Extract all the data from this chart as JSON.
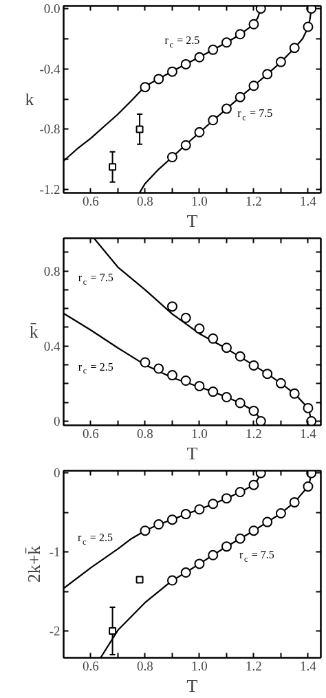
{
  "chart_data": [
    {
      "type": "line",
      "xlabel": "T",
      "ylabel": "k",
      "xlim": [
        0.5,
        1.447
      ],
      "ylim": [
        -1.222,
        0.018
      ],
      "xticks": [
        0.6,
        {
          "value": 0.7,
          "label": null
        },
        0.8,
        {
          "value": 0.9,
          "label": null
        },
        {
          "value": 1.0,
          "label": "1.0"
        },
        {
          "value": 1.1,
          "label": null
        },
        1.2,
        {
          "value": 1.3,
          "label": null
        },
        1.4
      ],
      "yticks": [
        {
          "value": 0,
          "label": "0.0"
        },
        {
          "value": -0.2,
          "label": null
        },
        -0.4,
        {
          "value": -0.6,
          "label": null
        },
        -0.8,
        {
          "value": -1.0,
          "label": null
        },
        -1.2
      ],
      "grid": false,
      "annotations": [
        "r$_{c}$ = 2.5",
        "r$_{c}$ = 7.5"
      ],
      "series": [
        {
          "color": "#000000",
          "line_style": "solid",
          "x": [
            0.5,
            0.55,
            0.6,
            0.65,
            0.7,
            0.75,
            0.8,
            0.85,
            0.9,
            0.95,
            1.0,
            1.05,
            1.1,
            1.15,
            1.2,
            1.215,
            1.226
          ],
          "values": [
            -1.01,
            -0.93,
            -0.86,
            -0.78,
            -0.7,
            -0.61,
            -0.515,
            -0.465,
            -0.416,
            -0.368,
            -0.322,
            -0.274,
            -0.225,
            -0.172,
            -0.104,
            -0.06,
            0.0
          ]
        },
        {
          "type": "scatter",
          "color": "#000000",
          "marker": "circle",
          "x": [
            0.8,
            0.85,
            0.9,
            0.95,
            1.0,
            1.05,
            1.1,
            1.15,
            1.2,
            1.226
          ],
          "values": [
            -0.521,
            -0.467,
            -0.418,
            -0.369,
            -0.323,
            -0.273,
            -0.225,
            -0.17,
            -0.104,
            0.0
          ]
        },
        {
          "color": "#000000",
          "line_style": "solid",
          "x": [
            0.78,
            0.8,
            0.85,
            0.9,
            0.95,
            1.0,
            1.05,
            1.1,
            1.15,
            1.2,
            1.25,
            1.3,
            1.35,
            1.38,
            1.4,
            1.407,
            1.412
          ],
          "values": [
            -1.22,
            -1.16,
            -1.065,
            -0.985,
            -0.902,
            -0.822,
            -0.742,
            -0.664,
            -0.587,
            -0.512,
            -0.435,
            -0.355,
            -0.262,
            -0.2,
            -0.125,
            -0.07,
            0.0
          ]
        },
        {
          "type": "scatter",
          "color": "#000000",
          "marker": "circle",
          "x": [
            0.9,
            0.95,
            1.0,
            1.05,
            1.1,
            1.15,
            1.2,
            1.25,
            1.3,
            1.35,
            1.4,
            1.412
          ],
          "values": [
            -0.985,
            -0.906,
            -0.82,
            -0.74,
            -0.664,
            -0.587,
            -0.512,
            -0.435,
            -0.354,
            -0.261,
            -0.121,
            0.0
          ]
        },
        {
          "type": "scatter",
          "color": "#000000",
          "marker": "square",
          "x": [
            0.68,
            0.78
          ],
          "values": [
            -1.05,
            -0.8
          ],
          "errors": [
            0.1,
            0.1
          ]
        }
      ]
    },
    {
      "type": "line",
      "xlabel": "T",
      "ylabel": "k̄",
      "xlim": [
        0.5,
        1.447
      ],
      "ylim": [
        -0.022,
        0.974
      ],
      "xticks": [
        0.6,
        {
          "value": 0.7,
          "label": null
        },
        0.8,
        {
          "value": 0.9,
          "label": null
        },
        {
          "value": 1.0,
          "label": "1.0"
        },
        {
          "value": 1.1,
          "label": null
        },
        1.2,
        {
          "value": 1.3,
          "label": null
        },
        1.4
      ],
      "yticks": [
        0,
        {
          "value": 0.1,
          "label": null
        },
        {
          "value": 0.2,
          "label": null
        },
        {
          "value": 0.3,
          "label": null
        },
        0.4,
        {
          "value": 0.5,
          "label": null
        },
        {
          "value": 0.6,
          "label": null
        },
        {
          "value": 0.7,
          "label": null
        },
        0.8,
        {
          "value": 0.9,
          "label": null
        }
      ],
      "grid": false,
      "annotations": [
        "r$_{c}$ = 7.5",
        "r$_{c}$ = 2.5"
      ],
      "series": [
        {
          "color": "#000000",
          "line_style": "solid",
          "x": [
            0.5,
            0.6,
            0.7,
            0.8,
            0.9,
            1.0,
            1.05,
            1.1,
            1.15,
            1.2,
            1.215,
            1.226
          ],
          "values": [
            0.574,
            0.485,
            0.39,
            0.3,
            0.232,
            0.182,
            0.157,
            0.128,
            0.097,
            0.055,
            0.03,
            0.0
          ]
        },
        {
          "type": "scatter",
          "color": "#000000",
          "marker": "circle",
          "x": [
            0.8,
            0.85,
            0.9,
            0.95,
            1.0,
            1.05,
            1.1,
            1.15,
            1.2,
            1.226
          ],
          "values": [
            0.313,
            0.28,
            0.245,
            0.216,
            0.187,
            0.157,
            0.128,
            0.097,
            0.055,
            0.0
          ]
        },
        {
          "color": "#000000",
          "line_style": "solid",
          "x": [
            0.612,
            0.7,
            0.8,
            0.9,
            1.0,
            1.1,
            1.2,
            1.25,
            1.3,
            1.35,
            1.4,
            1.407,
            1.412
          ],
          "values": [
            0.974,
            0.82,
            0.7,
            0.571,
            0.466,
            0.386,
            0.298,
            0.252,
            0.202,
            0.147,
            0.07,
            0.035,
            0.0
          ]
        },
        {
          "type": "scatter",
          "color": "#000000",
          "marker": "circle",
          "x": [
            0.9,
            0.95,
            1.0,
            1.05,
            1.1,
            1.15,
            1.2,
            1.25,
            1.3,
            1.35,
            1.4,
            1.412
          ],
          "values": [
            0.611,
            0.55,
            0.493,
            0.44,
            0.391,
            0.345,
            0.297,
            0.252,
            0.202,
            0.147,
            0.07,
            0.0
          ]
        }
      ]
    },
    {
      "type": "line",
      "xlabel": "T",
      "ylabel": "2k+k̄",
      "xlim": [
        0.5,
        1.447
      ],
      "ylim": [
        -2.34,
        0.03
      ],
      "xticks": [
        0.6,
        {
          "value": 0.7,
          "label": null
        },
        0.8,
        {
          "value": 0.9,
          "label": null
        },
        {
          "value": 1.0,
          "label": "1.0"
        },
        {
          "value": 1.1,
          "label": null
        },
        1.2,
        {
          "value": 1.3,
          "label": null
        },
        1.4
      ],
      "yticks": [
        0,
        {
          "value": -0.5,
          "label": null
        },
        -1,
        {
          "value": -1.5,
          "label": null
        },
        -2
      ],
      "grid": false,
      "annotations": [
        "r$_{c}$ = 2.5",
        "r$_{c}$ = 7.5"
      ],
      "series": [
        {
          "color": "#000000",
          "line_style": "solid",
          "x": [
            0.5,
            0.6,
            0.7,
            0.75,
            0.8,
            0.85,
            0.9,
            0.95,
            1.0,
            1.05,
            1.1,
            1.15,
            1.2,
            1.215,
            1.226
          ],
          "values": [
            -1.46,
            -1.2,
            -0.96,
            -0.83,
            -0.73,
            -0.65,
            -0.59,
            -0.52,
            -0.46,
            -0.39,
            -0.32,
            -0.24,
            -0.15,
            -0.08,
            0.0
          ]
        },
        {
          "type": "scatter",
          "color": "#000000",
          "marker": "circle",
          "x": [
            0.8,
            0.85,
            0.9,
            0.95,
            1.0,
            1.05,
            1.1,
            1.15,
            1.2,
            1.226
          ],
          "values": [
            -0.73,
            -0.65,
            -0.59,
            -0.52,
            -0.46,
            -0.39,
            -0.32,
            -0.24,
            -0.15,
            0.0
          ]
        },
        {
          "color": "#000000",
          "line_style": "solid",
          "x": [
            0.636,
            0.7,
            0.8,
            0.9,
            0.95,
            1.0,
            1.05,
            1.1,
            1.15,
            1.2,
            1.25,
            1.3,
            1.35,
            1.4,
            1.407,
            1.412
          ],
          "values": [
            -2.34,
            -1.99,
            -1.64,
            -1.36,
            -1.26,
            -1.15,
            -1.04,
            -0.93,
            -0.83,
            -0.73,
            -0.62,
            -0.51,
            -0.37,
            -0.17,
            -0.09,
            0.0
          ]
        },
        {
          "type": "scatter",
          "color": "#000000",
          "marker": "circle",
          "x": [
            0.9,
            0.95,
            1.0,
            1.05,
            1.1,
            1.15,
            1.2,
            1.25,
            1.3,
            1.35,
            1.4,
            1.412
          ],
          "values": [
            -1.36,
            -1.26,
            -1.15,
            -1.04,
            -0.93,
            -0.83,
            -0.73,
            -0.62,
            -0.51,
            -0.37,
            -0.17,
            0.0
          ]
        },
        {
          "type": "scatter",
          "color": "#000000",
          "marker": "square",
          "x": [
            0.68,
            0.78
          ],
          "values": [
            -2.0,
            -1.35
          ],
          "errors": [
            0.3,
            0.03
          ]
        }
      ]
    }
  ]
}
